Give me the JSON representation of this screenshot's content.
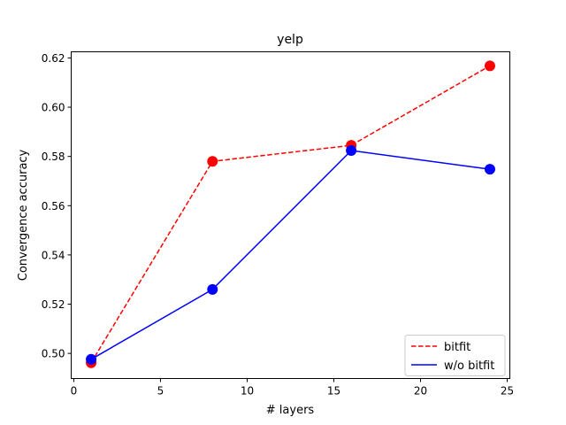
{
  "chart_data": {
    "type": "line",
    "title": "yelp",
    "xlabel": "# layers",
    "ylabel": "Convergence accuracy",
    "x": [
      1,
      8,
      16,
      24
    ],
    "xlim": [
      -0.15,
      25.15
    ],
    "ylim": [
      0.4898,
      0.6225
    ],
    "xticks": [
      0,
      5,
      10,
      15,
      20,
      25
    ],
    "xtick_labels": [
      "0",
      "5",
      "10",
      "15",
      "20",
      "25"
    ],
    "yticks": [
      0.5,
      0.52,
      0.54,
      0.56,
      0.58,
      0.6,
      0.62
    ],
    "ytick_labels": [
      "0.50",
      "0.52",
      "0.54",
      "0.56",
      "0.58",
      "0.60",
      "0.62"
    ],
    "grid": false,
    "legend_position": "bottom-right",
    "series": [
      {
        "name": "bitfit",
        "values": [
          0.4962,
          0.578,
          0.5845,
          0.6168
        ],
        "color": "#ff0000",
        "line_style": "dashed"
      },
      {
        "name": "w/o bitfit",
        "values": [
          0.4976,
          0.526,
          0.5824,
          0.5748
        ],
        "color": "#0000ff",
        "line_style": "solid"
      }
    ]
  }
}
